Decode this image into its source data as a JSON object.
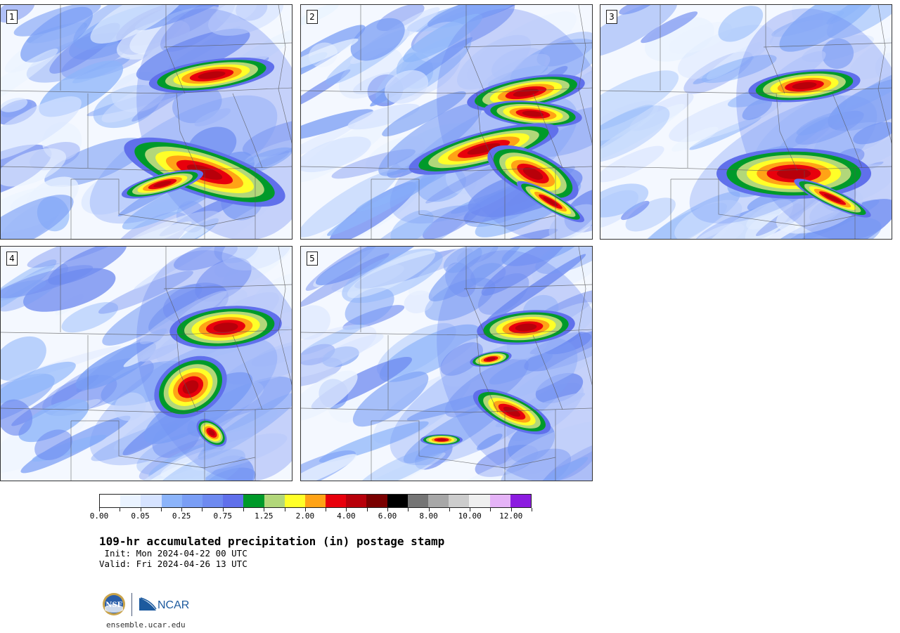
{
  "panels": [
    {
      "label": "1"
    },
    {
      "label": "2"
    },
    {
      "label": "3"
    },
    {
      "label": "4"
    },
    {
      "label": "5"
    }
  ],
  "colorbar": {
    "colors": [
      "#ffffff",
      "#eaf3ff",
      "#d6e3ff",
      "#8cb4fa",
      "#7a9ef5",
      "#6e8af0",
      "#6070eb",
      "#009a2a",
      "#b2d77a",
      "#ffff28",
      "#ffa316",
      "#e8000c",
      "#b8000a",
      "#7a0000",
      "#000000",
      "#757575",
      "#a7a7a7",
      "#cccccc",
      "#efefef",
      "#e5b3f7",
      "#8c1ce0"
    ],
    "tick_labels": [
      "0.00",
      "0.05",
      "0.25",
      "0.75",
      "1.25",
      "2.00",
      "4.00",
      "6.00",
      "8.00",
      "10.00",
      "12.00"
    ]
  },
  "title": "109-hr accumulated precipitation (in) postage stamp",
  "init": " Init: Mon 2024-04-22 00 UTC",
  "valid": "Valid: Fri 2024-04-26 13 UTC",
  "logos": {
    "nsf": "nsf-logo",
    "ncar_text": "NCAR"
  },
  "footer_url": "ensemble.ucar.edu"
}
